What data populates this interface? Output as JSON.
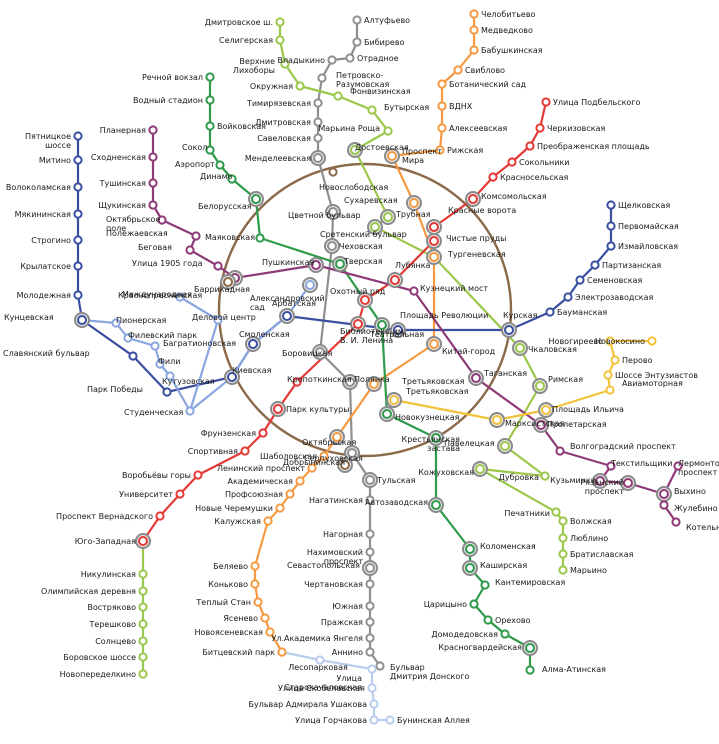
{
  "colors": {
    "red": "#e53935",
    "green": "#2e9a4a",
    "blue": "#3a4fa0",
    "lightblue": "#8aa6e0",
    "ring": "#8b6a4a",
    "orange": "#f59a42",
    "violet": "#8e3a78",
    "yellow": "#f2c23a",
    "lime": "#9bc74a",
    "grey": "#8f8f8f",
    "pale": "#b9cdee",
    "station": "#ffffff"
  },
  "lines": [
    {
      "id": "ring",
      "color": "ring"
    },
    {
      "id": "red",
      "color": "red"
    },
    {
      "id": "green",
      "color": "green"
    },
    {
      "id": "blue",
      "color": "blue"
    },
    {
      "id": "lightblue",
      "color": "lightblue"
    },
    {
      "id": "orange",
      "color": "orange"
    },
    {
      "id": "violet",
      "color": "violet"
    },
    {
      "id": "yellow",
      "color": "yellow"
    },
    {
      "id": "lime",
      "color": "lime"
    },
    {
      "id": "grey",
      "color": "grey"
    },
    {
      "id": "pale",
      "color": "pale"
    }
  ],
  "stations": [
    {
      "id": "s1",
      "name": "Алтуфьево",
      "line": "grey"
    },
    {
      "id": "s2",
      "name": "Бибирево",
      "line": "grey"
    },
    {
      "id": "s3",
      "name": "Отрадное",
      "line": "grey"
    },
    {
      "id": "s4",
      "name": "Владыкино",
      "line": "grey"
    },
    {
      "id": "s5",
      "name": "Петровско-Разумовская",
      "line": "grey"
    },
    {
      "id": "s6",
      "name": "Тимирязевская",
      "line": "grey"
    },
    {
      "id": "s7",
      "name": "Дмитровская",
      "line": "grey"
    },
    {
      "id": "s8",
      "name": "Савеловская",
      "line": "grey"
    },
    {
      "id": "s9",
      "name": "Менделеевская",
      "line": "grey"
    },
    {
      "id": "s10",
      "name": "Цветной бульвар",
      "line": "grey"
    },
    {
      "id": "s11",
      "name": "Чеховская",
      "line": "grey"
    },
    {
      "id": "s12",
      "name": "Боровицкая",
      "line": "grey"
    },
    {
      "id": "s13",
      "name": "Полянка",
      "line": "grey"
    },
    {
      "id": "s14",
      "name": "Серпуховская",
      "line": "grey"
    },
    {
      "id": "s15",
      "name": "Тульская",
      "line": "grey"
    },
    {
      "id": "s16",
      "name": "Нагатинская",
      "line": "grey"
    },
    {
      "id": "s17",
      "name": "Нагорная",
      "line": "grey"
    },
    {
      "id": "s18",
      "name": "Нахимовский проспект",
      "line": "grey"
    },
    {
      "id": "s19",
      "name": "Севастопольская",
      "line": "grey"
    },
    {
      "id": "s20",
      "name": "Чертановская",
      "line": "grey"
    },
    {
      "id": "s21",
      "name": "Южная",
      "line": "grey"
    },
    {
      "id": "s22",
      "name": "Пражская",
      "line": "grey"
    },
    {
      "id": "s23",
      "name": "Ул.Академика Янгеля",
      "line": "grey"
    },
    {
      "id": "s24",
      "name": "Аннино",
      "line": "grey"
    },
    {
      "id": "s25",
      "name": "Бульвар Дмитрия Донского",
      "line": "grey"
    },
    {
      "id": "s26",
      "name": "Дмитровское ш.",
      "line": "lime"
    },
    {
      "id": "s27",
      "name": "Селигерская",
      "line": "lime"
    },
    {
      "id": "s28",
      "name": "Верхние Лихоборы",
      "line": "lime"
    },
    {
      "id": "s29",
      "name": "Окружная",
      "line": "lime"
    },
    {
      "id": "s30",
      "name": "Фонвизинская",
      "line": "lime"
    },
    {
      "id": "s31",
      "name": "Бутырская",
      "line": "lime"
    },
    {
      "id": "s32",
      "name": "Марьина Роща",
      "line": "lime"
    },
    {
      "id": "s33",
      "name": "Достоевская",
      "line": "lime"
    },
    {
      "id": "s34",
      "name": "Трубная",
      "line": "lime"
    },
    {
      "id": "s35",
      "name": "Сретенский бульвар",
      "line": "lime"
    },
    {
      "id": "s36",
      "name": "Чкаловская",
      "line": "lime"
    },
    {
      "id": "s37",
      "name": "Римская",
      "line": "lime"
    },
    {
      "id": "s38",
      "name": "Крестьянская застава",
      "line": "lime"
    },
    {
      "id": "s39",
      "name": "Дубровка",
      "line": "lime"
    },
    {
      "id": "s40",
      "name": "Кожуховская",
      "line": "lime"
    },
    {
      "id": "s41",
      "name": "Печатники",
      "line": "lime"
    },
    {
      "id": "s42",
      "name": "Волжская",
      "line": "lime"
    },
    {
      "id": "s43",
      "name": "Люблино",
      "line": "lime"
    },
    {
      "id": "s44",
      "name": "Братиславская",
      "line": "lime"
    },
    {
      "id": "s45",
      "name": "Марьино",
      "line": "lime"
    },
    {
      "id": "s46",
      "name": "Челобитьево",
      "line": "orange"
    },
    {
      "id": "s47",
      "name": "Медведково",
      "line": "orange"
    },
    {
      "id": "s48",
      "name": "Бабушкинская",
      "line": "orange"
    },
    {
      "id": "s49",
      "name": "Свиблово",
      "line": "orange"
    },
    {
      "id": "s50",
      "name": "Ботанический сад",
      "line": "orange"
    },
    {
      "id": "s51",
      "name": "ВДНХ",
      "line": "orange"
    },
    {
      "id": "s52",
      "name": "Алексеевская",
      "line": "orange"
    },
    {
      "id": "s53",
      "name": "Рижская",
      "line": "orange"
    },
    {
      "id": "s54",
      "name": "Проспект Мира",
      "line": "orange"
    },
    {
      "id": "s55",
      "name": "Сухаревская",
      "line": "orange"
    },
    {
      "id": "s56",
      "name": "Тургеневская",
      "line": "orange"
    },
    {
      "id": "s57",
      "name": "Китай-город",
      "line": "orange"
    },
    {
      "id": "s58",
      "name": "Третьяковская",
      "line": "orange"
    },
    {
      "id": "s59",
      "name": "Октябрьская",
      "line": "orange"
    },
    {
      "id": "s60",
      "name": "Шаболовская",
      "line": "orange"
    },
    {
      "id": "s61",
      "name": "Ленинский проспект",
      "line": "orange"
    },
    {
      "id": "s62",
      "name": "Академическая",
      "line": "orange"
    },
    {
      "id": "s63",
      "name": "Профсоюзная",
      "line": "orange"
    },
    {
      "id": "s64",
      "name": "Новые Черемушки",
      "line": "orange"
    },
    {
      "id": "s65",
      "name": "Калужская",
      "line": "orange"
    },
    {
      "id": "s66",
      "name": "Беляево",
      "line": "orange"
    },
    {
      "id": "s67",
      "name": "Коньково",
      "line": "orange"
    },
    {
      "id": "s68",
      "name": "Теплый Стан",
      "line": "orange"
    },
    {
      "id": "s69",
      "name": "Ясенево",
      "line": "orange"
    },
    {
      "id": "s70",
      "name": "Новоясеневская",
      "line": "orange"
    },
    {
      "id": "s71",
      "name": "Битцевский парк",
      "line": "orange"
    },
    {
      "id": "s72",
      "name": "Лесопарковая",
      "line": "pale"
    },
    {
      "id": "s73",
      "name": "Улица Старокачаловская",
      "line": "pale"
    },
    {
      "id": "s74",
      "name": "Улица Скобелевская",
      "line": "pale"
    },
    {
      "id": "s75",
      "name": "Бульвар Адмирала Ушакова",
      "line": "pale"
    },
    {
      "id": "s76",
      "name": "Улица Горчакова",
      "line": "pale"
    },
    {
      "id": "s77",
      "name": "Бунинская Аллея",
      "line": "pale"
    },
    {
      "id": "s78",
      "name": "Улица Подбельского",
      "line": "red"
    },
    {
      "id": "s79",
      "name": "Черкизовская",
      "line": "red"
    },
    {
      "id": "s80",
      "name": "Преображенская площадь",
      "line": "red"
    },
    {
      "id": "s81",
      "name": "Сокольники",
      "line": "red"
    },
    {
      "id": "s82",
      "name": "Красносельская",
      "line": "red"
    },
    {
      "id": "s83",
      "name": "Комсомольская",
      "line": "red"
    },
    {
      "id": "s84",
      "name": "Красные ворота",
      "line": "red"
    },
    {
      "id": "s85",
      "name": "Чистые пруды",
      "line": "red"
    },
    {
      "id": "s86",
      "name": "Лубянка",
      "line": "red"
    },
    {
      "id": "s87",
      "name": "Охотный ряд",
      "line": "red"
    },
    {
      "id": "s88",
      "name": "Библиотека им. В. И. Ленина",
      "line": "red"
    },
    {
      "id": "s89",
      "name": "Кропоткинская",
      "line": "red"
    },
    {
      "id": "s90",
      "name": "Парк культуры",
      "line": "red"
    },
    {
      "id": "s91",
      "name": "Фрунзенская",
      "line": "red"
    },
    {
      "id": "s92",
      "name": "Спортивная",
      "line": "red"
    },
    {
      "id": "s93",
      "name": "Воробьёвы горы",
      "line": "red"
    },
    {
      "id": "s94",
      "name": "Университет",
      "line": "red"
    },
    {
      "id": "s95",
      "name": "Проспект Вернадского",
      "line": "red"
    },
    {
      "id": "s96",
      "name": "Юго-Западная",
      "line": "red"
    },
    {
      "id": "s97",
      "name": "Никулинская",
      "line": "lime"
    },
    {
      "id": "s98",
      "name": "Олимпийская деревня",
      "line": "lime"
    },
    {
      "id": "s99",
      "name": "Востряково",
      "line": "lime"
    },
    {
      "id": "s100",
      "name": "Терешково",
      "line": "lime"
    },
    {
      "id": "s101",
      "name": "Солнцево",
      "line": "lime"
    },
    {
      "id": "s102",
      "name": "Боровское шоссе",
      "line": "lime"
    },
    {
      "id": "s103",
      "name": "Новопеределкино",
      "line": "lime"
    },
    {
      "id": "s104",
      "name": "Речной вокзал",
      "line": "green"
    },
    {
      "id": "s105",
      "name": "Водный стадион",
      "line": "green"
    },
    {
      "id": "s106",
      "name": "Войковская",
      "line": "green"
    },
    {
      "id": "s107",
      "name": "Сокол",
      "line": "green"
    },
    {
      "id": "s108",
      "name": "Аэропорт",
      "line": "green"
    },
    {
      "id": "s109",
      "name": "Динамо",
      "line": "green"
    },
    {
      "id": "s110",
      "name": "Белорусская",
      "line": "green"
    },
    {
      "id": "s111",
      "name": "Маяковская",
      "line": "green"
    },
    {
      "id": "s112",
      "name": "Тверская",
      "line": "green"
    },
    {
      "id": "s113",
      "name": "Театральная",
      "line": "green"
    },
    {
      "id": "s114",
      "name": "Новокузнецкая",
      "line": "green"
    },
    {
      "id": "s115",
      "name": "Павелецкая",
      "line": "green"
    },
    {
      "id": "s116",
      "name": "Автозаводская",
      "line": "green"
    },
    {
      "id": "s117",
      "name": "Коломенская",
      "line": "green"
    },
    {
      "id": "s118",
      "name": "Каширская",
      "line": "green"
    },
    {
      "id": "s119",
      "name": "Кантемировская",
      "line": "green"
    },
    {
      "id": "s120",
      "name": "Царицыно",
      "line": "green"
    },
    {
      "id": "s121",
      "name": "Орехово",
      "line": "green"
    },
    {
      "id": "s122",
      "name": "Домодедовская",
      "line": "green"
    },
    {
      "id": "s123",
      "name": "Красногвардейская",
      "line": "green"
    },
    {
      "id": "s124",
      "name": "Алма-Атинская",
      "line": "green"
    },
    {
      "id": "s125",
      "name": "Пятницкое шоссе",
      "line": "blue"
    },
    {
      "id": "s126",
      "name": "Митино",
      "line": "blue"
    },
    {
      "id": "s127",
      "name": "Волоколамская",
      "line": "blue"
    },
    {
      "id": "s128",
      "name": "Мякининская",
      "line": "blue"
    },
    {
      "id": "s129",
      "name": "Строгино",
      "line": "blue"
    },
    {
      "id": "s130",
      "name": "Крылатское",
      "line": "blue"
    },
    {
      "id": "s131",
      "name": "Молодежная",
      "line": "blue"
    },
    {
      "id": "s132",
      "name": "Кунцевская",
      "line": "blue"
    },
    {
      "id": "s133",
      "name": "Славянский бульвар",
      "line": "blue"
    },
    {
      "id": "s134",
      "name": "Парк Победы",
      "line": "blue"
    },
    {
      "id": "s135",
      "name": "Киевская",
      "line": "blue"
    },
    {
      "id": "s136",
      "name": "Смоленская",
      "line": "blue"
    },
    {
      "id": "s137",
      "name": "Арбатская",
      "line": "blue"
    },
    {
      "id": "s138",
      "name": "Площадь Революции",
      "line": "blue"
    },
    {
      "id": "s139",
      "name": "Курская",
      "line": "blue"
    },
    {
      "id": "s140",
      "name": "Бауманская",
      "line": "blue"
    },
    {
      "id": "s141",
      "name": "Электрозаводская",
      "line": "blue"
    },
    {
      "id": "s142",
      "name": "Семеновская",
      "line": "blue"
    },
    {
      "id": "s143",
      "name": "Партизанская",
      "line": "blue"
    },
    {
      "id": "s144",
      "name": "Измайловская",
      "line": "blue"
    },
    {
      "id": "s145",
      "name": "Первомайская",
      "line": "blue"
    },
    {
      "id": "s146",
      "name": "Щелковская",
      "line": "blue"
    },
    {
      "id": "s147",
      "name": "Пионерская",
      "line": "lightblue"
    },
    {
      "id": "s148",
      "name": "Филевский парк",
      "line": "lightblue"
    },
    {
      "id": "s149",
      "name": "Багратионовская",
      "line": "lightblue"
    },
    {
      "id": "s150",
      "name": "Фили",
      "line": "lightblue"
    },
    {
      "id": "s151",
      "name": "Кутузовская",
      "line": "lightblue"
    },
    {
      "id": "s152",
      "name": "Студенческая",
      "line": "lightblue"
    },
    {
      "id": "s153",
      "name": "Международная",
      "line": "lightblue"
    },
    {
      "id": "s154",
      "name": "Деловой центр",
      "line": "lightblue"
    },
    {
      "id": "s155",
      "name": "Александровский сад",
      "line": "lightblue"
    },
    {
      "id": "s156",
      "name": "Планерная",
      "line": "violet"
    },
    {
      "id": "s157",
      "name": "Сходненская",
      "line": "violet"
    },
    {
      "id": "s158",
      "name": "Тушинская",
      "line": "violet"
    },
    {
      "id": "s159",
      "name": "Щукинская",
      "line": "violet"
    },
    {
      "id": "s160",
      "name": "Октябрьское поле",
      "line": "violet"
    },
    {
      "id": "s161",
      "name": "Полежаевская",
      "line": "violet"
    },
    {
      "id": "s162",
      "name": "Беговая",
      "line": "violet"
    },
    {
      "id": "s163",
      "name": "Улица 1905 года",
      "line": "violet"
    },
    {
      "id": "s164",
      "name": "Баррикадная",
      "line": "violet"
    },
    {
      "id": "s165",
      "name": "Пушкинская",
      "line": "violet"
    },
    {
      "id": "s166",
      "name": "Кузнецкий мост",
      "line": "violet"
    },
    {
      "id": "s167",
      "name": "Таганская",
      "line": "violet"
    },
    {
      "id": "s168",
      "name": "Пролетарская",
      "line": "violet"
    },
    {
      "id": "s169",
      "name": "Волгоградский проспект",
      "line": "violet"
    },
    {
      "id": "s170",
      "name": "Текстильщики",
      "line": "violet"
    },
    {
      "id": "s171",
      "name": "Кузьминки",
      "line": "violet"
    },
    {
      "id": "s172",
      "name": "Рязанский проспект",
      "line": "violet"
    },
    {
      "id": "s173",
      "name": "Выхино",
      "line": "violet"
    },
    {
      "id": "s174",
      "name": "Лермонтовский проспект",
      "line": "violet"
    },
    {
      "id": "s175",
      "name": "Жулебино",
      "line": "violet"
    },
    {
      "id": "s176",
      "name": "Котельники",
      "line": "violet"
    },
    {
      "id": "s177",
      "name": "Новокосино",
      "line": "yellow"
    },
    {
      "id": "s178",
      "name": "Новогиреево",
      "line": "yellow"
    },
    {
      "id": "s179",
      "name": "Перово",
      "line": "yellow"
    },
    {
      "id": "s180",
      "name": "Шоссе Энтузиастов",
      "line": "yellow"
    },
    {
      "id": "s181",
      "name": "Авиамоторная",
      "line": "yellow"
    },
    {
      "id": "s182",
      "name": "Площадь Ильича",
      "line": "yellow"
    },
    {
      "id": "s183",
      "name": "Марксистская",
      "line": "yellow"
    },
    {
      "id": "s184",
      "name": "Третьяковская",
      "line": "yellow"
    },
    {
      "id": "s185",
      "name": "Новослободская",
      "line": "ring"
    },
    {
      "id": "s186",
      "name": "Краснопресненская",
      "line": "ring"
    },
    {
      "id": "s187",
      "name": "Добрынинская",
      "line": "ring"
    }
  ]
}
